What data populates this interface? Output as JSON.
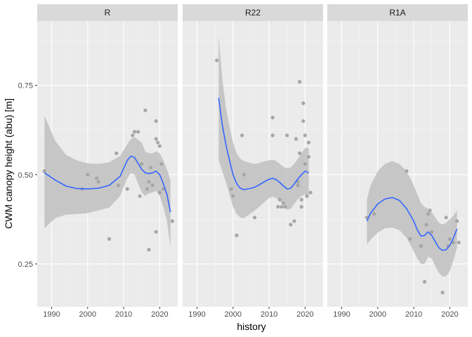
{
  "chart_data": {
    "type": "scatter",
    "xlabel": "history",
    "ylabel": "CWM canopy height (abu) [m]",
    "xlim": [
      1986,
      2025
    ],
    "ylim": [
      0.13,
      0.93
    ],
    "x_ticks": [
      "1990",
      "2000",
      "2010",
      "2020"
    ],
    "x_tick_values": [
      1990,
      2000,
      2010,
      2020
    ],
    "y_ticks": [
      "0.25",
      "0.50",
      "0.75"
    ],
    "y_tick_values": [
      0.25,
      0.5,
      0.75
    ],
    "grid": true,
    "colors": {
      "panel_bg": "#ebebeb",
      "strip_bg": "#d9d9d9",
      "grid_major": "#ffffff",
      "points": "#a6a6a6",
      "ribbon": "#bfbfbf",
      "smooth_line": "#3366ff"
    },
    "facets": [
      {
        "label": "R",
        "points": [
          [
            1988,
            0.51
          ],
          [
            1998.5,
            0.46
          ],
          [
            2000,
            0.5
          ],
          [
            2002.5,
            0.49
          ],
          [
            2003,
            0.48
          ],
          [
            2006,
            0.32
          ],
          [
            2008,
            0.56
          ],
          [
            2008.5,
            0.47
          ],
          [
            2011,
            0.46
          ],
          [
            2012.5,
            0.61
          ],
          [
            2013,
            0.62
          ],
          [
            2014,
            0.62
          ],
          [
            2014.5,
            0.44
          ],
          [
            2015,
            0.53
          ],
          [
            2016,
            0.68
          ],
          [
            2016.5,
            0.46
          ],
          [
            2017,
            0.29
          ],
          [
            2017,
            0.48
          ],
          [
            2017.5,
            0.52
          ],
          [
            2018,
            0.47
          ],
          [
            2019,
            0.6
          ],
          [
            2019,
            0.65
          ],
          [
            2019.5,
            0.59
          ],
          [
            2019,
            0.34
          ],
          [
            2020,
            0.58
          ],
          [
            2020,
            0.45
          ],
          [
            2020.5,
            0.53
          ],
          [
            2021,
            0.46
          ],
          [
            2023.5,
            0.37
          ]
        ],
        "smooth": [
          [
            1988,
            0.505
          ],
          [
            1991,
            0.485
          ],
          [
            1994,
            0.468
          ],
          [
            1997,
            0.461
          ],
          [
            2000,
            0.46
          ],
          [
            2003,
            0.462
          ],
          [
            2006,
            0.47
          ],
          [
            2009,
            0.495
          ],
          [
            2011,
            0.54
          ],
          [
            2012,
            0.552
          ],
          [
            2013,
            0.548
          ],
          [
            2015,
            0.515
          ],
          [
            2016,
            0.505
          ],
          [
            2017,
            0.503
          ],
          [
            2018,
            0.505
          ],
          [
            2019,
            0.51
          ],
          [
            2020,
            0.5
          ],
          [
            2021,
            0.475
          ],
          [
            2022,
            0.445
          ],
          [
            2023,
            0.395
          ]
        ],
        "ribbon_upper": [
          [
            1988,
            0.665
          ],
          [
            1991,
            0.595
          ],
          [
            1994,
            0.555
          ],
          [
            1997,
            0.54
          ],
          [
            2000,
            0.532
          ],
          [
            2003,
            0.53
          ],
          [
            2006,
            0.535
          ],
          [
            2009,
            0.552
          ],
          [
            2011,
            0.585
          ],
          [
            2012,
            0.6
          ],
          [
            2013,
            0.605
          ],
          [
            2015,
            0.59
          ],
          [
            2016,
            0.565
          ],
          [
            2017,
            0.56
          ],
          [
            2018,
            0.56
          ],
          [
            2019,
            0.565
          ],
          [
            2020,
            0.56
          ],
          [
            2021,
            0.54
          ],
          [
            2022,
            0.515
          ],
          [
            2023,
            0.485
          ]
        ],
        "ribbon_lower": [
          [
            1988,
            0.35
          ],
          [
            1991,
            0.378
          ],
          [
            1994,
            0.388
          ],
          [
            1997,
            0.39
          ],
          [
            2000,
            0.392
          ],
          [
            2003,
            0.4
          ],
          [
            2006,
            0.408
          ],
          [
            2009,
            0.44
          ],
          [
            2011,
            0.49
          ],
          [
            2012,
            0.505
          ],
          [
            2013,
            0.5
          ],
          [
            2015,
            0.45
          ],
          [
            2016,
            0.44
          ],
          [
            2017,
            0.448
          ],
          [
            2018,
            0.45
          ],
          [
            2019,
            0.455
          ],
          [
            2020,
            0.44
          ],
          [
            2021,
            0.41
          ],
          [
            2022,
            0.372
          ],
          [
            2023,
            0.295
          ]
        ]
      },
      {
        "label": "R22",
        "points": [
          [
            1995.5,
            0.82
          ],
          [
            1999.5,
            0.46
          ],
          [
            2000,
            0.44
          ],
          [
            2001,
            0.33
          ],
          [
            2002.5,
            0.61
          ],
          [
            2003,
            0.5
          ],
          [
            2006,
            0.38
          ],
          [
            2011,
            0.66
          ],
          [
            2011,
            0.61
          ],
          [
            2012.5,
            0.41
          ],
          [
            2013,
            0.43
          ],
          [
            2013.5,
            0.41
          ],
          [
            2014,
            0.42
          ],
          [
            2014.5,
            0.41
          ],
          [
            2015,
            0.61
          ],
          [
            2016,
            0.36
          ],
          [
            2017,
            0.37
          ],
          [
            2017.5,
            0.6
          ],
          [
            2018,
            0.47
          ],
          [
            2018,
            0.48
          ],
          [
            2018.5,
            0.76
          ],
          [
            2018.5,
            0.56
          ],
          [
            2019,
            0.41
          ],
          [
            2019,
            0.43
          ],
          [
            2019.5,
            0.7
          ],
          [
            2019.5,
            0.65
          ],
          [
            2020,
            0.61
          ],
          [
            2020,
            0.53
          ],
          [
            2020.5,
            0.44
          ],
          [
            2021,
            0.59
          ],
          [
            2021,
            0.55
          ],
          [
            2021.5,
            0.45
          ]
        ],
        "smooth": [
          [
            1996,
            0.715
          ],
          [
            1997,
            0.64
          ],
          [
            1998,
            0.585
          ],
          [
            1999,
            0.54
          ],
          [
            2000,
            0.5
          ],
          [
            2001,
            0.475
          ],
          [
            2002,
            0.462
          ],
          [
            2003,
            0.458
          ],
          [
            2004,
            0.46
          ],
          [
            2005,
            0.462
          ],
          [
            2006,
            0.465
          ],
          [
            2007,
            0.47
          ],
          [
            2008,
            0.476
          ],
          [
            2009,
            0.482
          ],
          [
            2010,
            0.487
          ],
          [
            2011,
            0.49
          ],
          [
            2012,
            0.486
          ],
          [
            2013,
            0.478
          ],
          [
            2014,
            0.468
          ],
          [
            2015,
            0.46
          ],
          [
            2016,
            0.462
          ],
          [
            2017,
            0.474
          ],
          [
            2018,
            0.488
          ],
          [
            2019,
            0.5
          ],
          [
            2020,
            0.51
          ],
          [
            2021,
            0.505
          ]
        ],
        "ribbon_upper": [
          [
            1996,
            0.89
          ],
          [
            1997,
            0.77
          ],
          [
            1998,
            0.69
          ],
          [
            1999,
            0.635
          ],
          [
            2000,
            0.59
          ],
          [
            2001,
            0.56
          ],
          [
            2002,
            0.545
          ],
          [
            2003,
            0.538
          ],
          [
            2004,
            0.535
          ],
          [
            2005,
            0.532
          ],
          [
            2006,
            0.53
          ],
          [
            2007,
            0.532
          ],
          [
            2008,
            0.535
          ],
          [
            2009,
            0.538
          ],
          [
            2010,
            0.54
          ],
          [
            2011,
            0.542
          ],
          [
            2012,
            0.538
          ],
          [
            2013,
            0.53
          ],
          [
            2014,
            0.522
          ],
          [
            2015,
            0.518
          ],
          [
            2016,
            0.52
          ],
          [
            2017,
            0.53
          ],
          [
            2018,
            0.545
          ],
          [
            2019,
            0.56
          ],
          [
            2020,
            0.575
          ],
          [
            2021,
            0.575
          ]
        ],
        "ribbon_lower": [
          [
            1996,
            0.54
          ],
          [
            1997,
            0.51
          ],
          [
            1998,
            0.48
          ],
          [
            1999,
            0.445
          ],
          [
            2000,
            0.41
          ],
          [
            2001,
            0.39
          ],
          [
            2002,
            0.38
          ],
          [
            2003,
            0.378
          ],
          [
            2004,
            0.385
          ],
          [
            2005,
            0.392
          ],
          [
            2006,
            0.4
          ],
          [
            2007,
            0.408
          ],
          [
            2008,
            0.417
          ],
          [
            2009,
            0.426
          ],
          [
            2010,
            0.434
          ],
          [
            2011,
            0.438
          ],
          [
            2012,
            0.434
          ],
          [
            2013,
            0.426
          ],
          [
            2014,
            0.414
          ],
          [
            2015,
            0.402
          ],
          [
            2016,
            0.404
          ],
          [
            2017,
            0.418
          ],
          [
            2018,
            0.432
          ],
          [
            2019,
            0.44
          ],
          [
            2020,
            0.445
          ],
          [
            2021,
            0.435
          ]
        ]
      },
      {
        "label": "R1A",
        "points": [
          [
            1997,
            0.38
          ],
          [
            1999,
            0.39
          ],
          [
            2008,
            0.51
          ],
          [
            2009,
            0.32
          ],
          [
            2012,
            0.3
          ],
          [
            2013,
            0.2
          ],
          [
            2013.5,
            0.36
          ],
          [
            2014,
            0.39
          ],
          [
            2014.5,
            0.4
          ],
          [
            2015,
            0.34
          ],
          [
            2018,
            0.17
          ],
          [
            2019,
            0.38
          ],
          [
            2019.5,
            0.3
          ],
          [
            2020,
            0.32
          ],
          [
            2021,
            0.31
          ],
          [
            2022,
            0.37
          ],
          [
            2022.5,
            0.31
          ]
        ],
        "smooth": [
          [
            1997,
            0.37
          ],
          [
            1998,
            0.392
          ],
          [
            2000,
            0.418
          ],
          [
            2002,
            0.432
          ],
          [
            2004,
            0.436
          ],
          [
            2006,
            0.428
          ],
          [
            2008,
            0.405
          ],
          [
            2010,
            0.37
          ],
          [
            2011,
            0.345
          ],
          [
            2012,
            0.328
          ],
          [
            2013,
            0.33
          ],
          [
            2014,
            0.34
          ],
          [
            2015,
            0.33
          ],
          [
            2016,
            0.312
          ],
          [
            2017,
            0.295
          ],
          [
            2018,
            0.288
          ],
          [
            2019,
            0.29
          ],
          [
            2020,
            0.302
          ],
          [
            2021,
            0.322
          ],
          [
            2022,
            0.348
          ]
        ],
        "ribbon_upper": [
          [
            1997,
            0.43
          ],
          [
            1998,
            0.47
          ],
          [
            2000,
            0.51
          ],
          [
            2002,
            0.53
          ],
          [
            2004,
            0.538
          ],
          [
            2006,
            0.53
          ],
          [
            2008,
            0.51
          ],
          [
            2010,
            0.47
          ],
          [
            2011,
            0.445
          ],
          [
            2012,
            0.42
          ],
          [
            2013,
            0.41
          ],
          [
            2014,
            0.405
          ],
          [
            2015,
            0.395
          ],
          [
            2016,
            0.38
          ],
          [
            2017,
            0.365
          ],
          [
            2018,
            0.36
          ],
          [
            2019,
            0.365
          ],
          [
            2020,
            0.375
          ],
          [
            2021,
            0.385
          ],
          [
            2022,
            0.4
          ]
        ],
        "ribbon_lower": [
          [
            1997,
            0.305
          ],
          [
            1998,
            0.318
          ],
          [
            2000,
            0.338
          ],
          [
            2002,
            0.35
          ],
          [
            2004,
            0.352
          ],
          [
            2006,
            0.345
          ],
          [
            2008,
            0.323
          ],
          [
            2010,
            0.285
          ],
          [
            2011,
            0.265
          ],
          [
            2012,
            0.25
          ],
          [
            2013,
            0.25
          ],
          [
            2014,
            0.27
          ],
          [
            2015,
            0.265
          ],
          [
            2016,
            0.243
          ],
          [
            2017,
            0.225
          ],
          [
            2018,
            0.215
          ],
          [
            2019,
            0.215
          ],
          [
            2020,
            0.23
          ],
          [
            2021,
            0.26
          ],
          [
            2022,
            0.295
          ]
        ]
      }
    ]
  }
}
